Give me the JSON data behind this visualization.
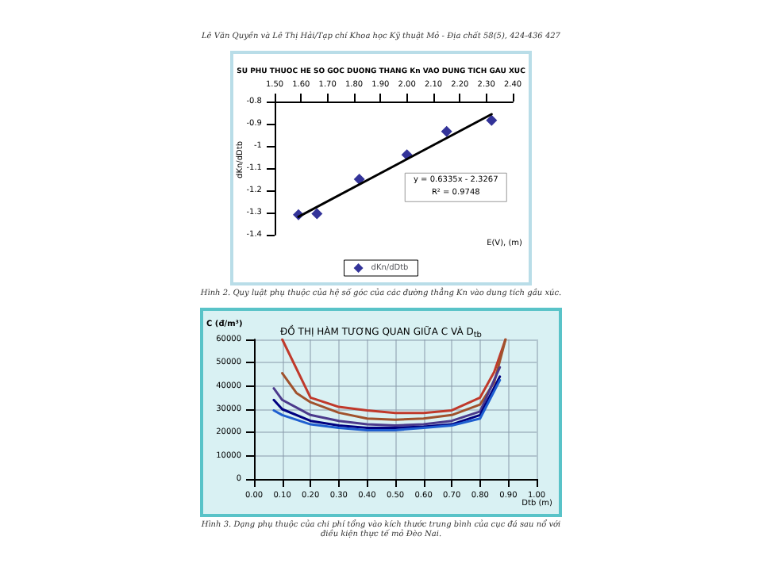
{
  "chart_data": [
    {
      "type": "scatter",
      "title": "SU PHU THUOC HE SO GOC DUONG THANG Kn VAO DUNG TICH GAU XUC",
      "xlabel": "E(V), (m)",
      "ylabel": "dKn/dDtb",
      "x": [
        1.59,
        1.66,
        1.82,
        2.0,
        2.15,
        2.32
      ],
      "series": [
        {
          "name": "dKn/dDtb",
          "color": "#000080",
          "values": [
            -1.31,
            -1.305,
            -1.15,
            -1.04,
            -0.935,
            -0.885
          ]
        },
        {
          "type": "line",
          "color": "#000000",
          "marker": "none",
          "x": [
            1.59,
            2.32
          ],
          "values": [
            -1.319,
            -0.857
          ]
        }
      ],
      "xlim": [
        1.5,
        2.4
      ],
      "xticks": [
        {
          "value": 1.5,
          "label": "1.50"
        },
        {
          "value": 1.6,
          "label": "1.60"
        },
        {
          "value": 1.7,
          "label": "1.70"
        },
        {
          "value": 1.8,
          "label": "1.80"
        },
        {
          "value": 1.9,
          "label": "1.90"
        },
        {
          "value": 2.0,
          "label": "2.00"
        },
        {
          "value": 2.1,
          "label": "2.10"
        },
        {
          "value": 2.2,
          "label": "2.20"
        },
        {
          "value": 2.3,
          "label": "2.30"
        },
        {
          "value": 2.4,
          "label": "2.40"
        }
      ],
      "ylim": [
        -1.4,
        -0.8
      ],
      "yticks": [
        -1.4,
        -1.3,
        -1.2,
        -1.1,
        -1,
        -0.9,
        -0.8
      ],
      "marker": "diamond",
      "legend": "bottom",
      "grid": false,
      "annotations": [
        "Lê Văn Quyền và Lê Thị Hải/Tạp chí Khoa học Kỹ thuật Mỏ - Địa chất 58(5), 424-436     427",
        "y = 0.6335x - 2.3267",
        "R² = 0.9748",
        "Hình 2. Quy luật phụ thuộc của hệ số góc của các đường thẳng Kn vào dung tích gầu xúc."
      ]
    },
    {
      "type": "line",
      "title": "ĐỒ THỊ HÀM TƯƠNG QUAN GIỮA C VÀ D$_{tb}$",
      "xlabel": "Dtb (m)",
      "ylabel": "C (đ/m³)",
      "series": [
        {
          "color": "#c0392b",
          "x": [
            0.1,
            0.2,
            0.3,
            0.4,
            0.5,
            0.6,
            0.7,
            0.8,
            0.85,
            0.89
          ],
          "values": [
            60000,
            35000,
            31000,
            29500,
            28400,
            28400,
            29500,
            35000,
            46000,
            60000
          ]
        },
        {
          "color": "#a0522d",
          "x": [
            0.1,
            0.15,
            0.2,
            0.3,
            0.4,
            0.5,
            0.6,
            0.7,
            0.8,
            0.85,
            0.89
          ],
          "values": [
            45500,
            37000,
            33000,
            28500,
            26000,
            25500,
            26000,
            27500,
            32000,
            41500,
            60000
          ]
        },
        {
          "color": "#4b3a8c",
          "x": [
            0.07,
            0.1,
            0.2,
            0.3,
            0.4,
            0.5,
            0.6,
            0.7,
            0.8,
            0.87
          ],
          "values": [
            39000,
            34000,
            27500,
            25000,
            23500,
            23000,
            23500,
            25000,
            29000,
            48000
          ]
        },
        {
          "color": "#000080",
          "x": [
            0.07,
            0.1,
            0.2,
            0.3,
            0.4,
            0.5,
            0.6,
            0.7,
            0.8,
            0.87
          ],
          "values": [
            34000,
            30000,
            25000,
            23000,
            22000,
            22000,
            22500,
            23500,
            27500,
            44000
          ]
        },
        {
          "color": "#1f5fd0",
          "x": [
            0.07,
            0.1,
            0.2,
            0.3,
            0.4,
            0.5,
            0.6,
            0.7,
            0.8,
            0.87
          ],
          "values": [
            29500,
            27500,
            23500,
            22000,
            21000,
            21000,
            22000,
            23000,
            26000,
            42500
          ]
        }
      ],
      "xlim": [
        0,
        1
      ],
      "xticks": [
        {
          "value": 0,
          "label": "0.00"
        },
        {
          "value": 0.1,
          "label": "0.10"
        },
        {
          "value": 0.2,
          "label": "0.20"
        },
        {
          "value": 0.3,
          "label": "0.30"
        },
        {
          "value": 0.4,
          "label": "0.40"
        },
        {
          "value": 0.5,
          "label": "0.50"
        },
        {
          "value": 0.6,
          "label": "0.60"
        },
        {
          "value": 0.7,
          "label": "0.70"
        },
        {
          "value": 0.8,
          "label": "0.80"
        },
        {
          "value": 0.9,
          "label": "0.90"
        },
        {
          "value": 1,
          "label": "1.00"
        }
      ],
      "ylim": [
        0,
        60000
      ],
      "yticks": [
        0,
        10000,
        20000,
        30000,
        40000,
        50000,
        60000
      ],
      "marker": "none",
      "grid": true,
      "annotations": [
        "Hình 3. Dạng phụ thuộc của chi phí tổng vào kích thước trung bình của cục đá sau nổ với điều kiện thực tế mỏ Đèo Nai."
      ]
    }
  ]
}
